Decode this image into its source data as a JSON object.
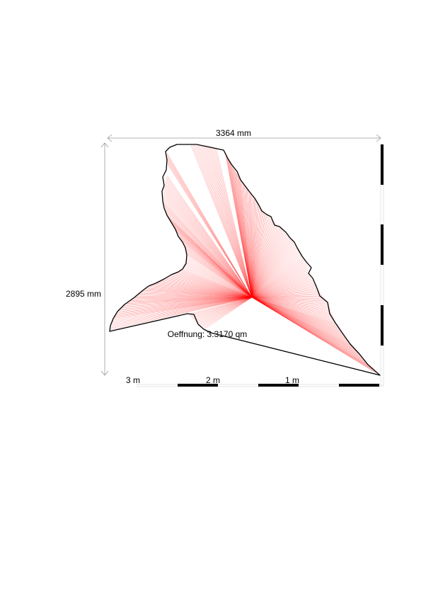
{
  "diagram": {
    "width_label": "3364 mm",
    "height_label": "2895 mm",
    "opening_label": "Oeffnung: 3.3170 qm",
    "scale_labels": [
      "1 m",
      "2 m",
      "3 m"
    ]
  },
  "colors": {
    "outline": "#000000",
    "rays": "#ff0000",
    "dimension": "#999999"
  }
}
